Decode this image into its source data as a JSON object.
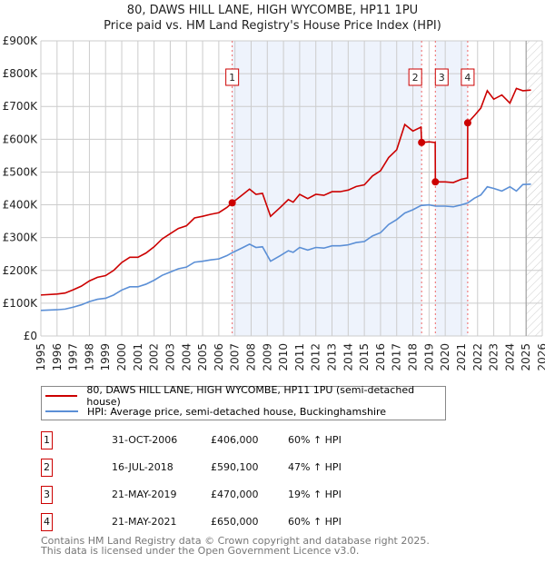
{
  "title_line1": "80, DAWS HILL LANE, HIGH WYCOMBE, HP11 1PU",
  "title_line2": "Price paid vs. HM Land Registry's House Price Index (HPI)",
  "legend": {
    "property": "80, DAWS HILL LANE, HIGH WYCOMBE, HP11 1PU (semi-detached house)",
    "hpi": "HPI: Average price, semi-detached house, Buckinghamshire"
  },
  "colors": {
    "property": "#cc0000",
    "hpi": "#5b8fd6",
    "shade": "#eef3fc",
    "grid": "#cccccc"
  },
  "sales": [
    {
      "num": "1",
      "date": "31-OCT-2006",
      "price": "£406,000",
      "hpi": "60% ↑ HPI",
      "t": 2006.83,
      "value": 406
    },
    {
      "num": "2",
      "date": "16-JUL-2018",
      "price": "£590,100",
      "hpi": "47% ↑ HPI",
      "t": 2018.54,
      "value": 590.1
    },
    {
      "num": "3",
      "date": "21-MAY-2019",
      "price": "£470,000",
      "hpi": "19% ↑ HPI",
      "t": 2019.39,
      "value": 470
    },
    {
      "num": "4",
      "date": "21-MAY-2021",
      "price": "£650,000",
      "hpi": "60% ↑ HPI",
      "t": 2021.39,
      "value": 650
    }
  ],
  "footer": [
    "Contains HM Land Registry data © Crown copyright and database right 2025.",
    "This data is licensed under the Open Government Licence v3.0."
  ],
  "chart_data": {
    "type": "line",
    "title": "80, DAWS HILL LANE, HIGH WYCOMBE, HP11 1PU — Price paid vs. HM Land Registry's House Price Index (HPI)",
    "xlabel": "",
    "ylabel": "",
    "xlim": [
      1995,
      2026
    ],
    "ylim": [
      0,
      900
    ],
    "y_unit": "£K",
    "yticks": [
      "£0",
      "£100K",
      "£200K",
      "£300K",
      "£400K",
      "£500K",
      "£600K",
      "£700K",
      "£800K",
      "£900K"
    ],
    "xticks": [
      "1995",
      "1996",
      "1997",
      "1998",
      "1999",
      "2000",
      "2001",
      "2002",
      "2003",
      "2004",
      "2005",
      "2006",
      "2007",
      "2008",
      "2009",
      "2010",
      "2011",
      "2012",
      "2013",
      "2014",
      "2015",
      "2016",
      "2017",
      "2018",
      "2019",
      "2020",
      "2021",
      "2022",
      "2023",
      "2024",
      "2025",
      "2026"
    ],
    "grid": true,
    "legend_position": "bottom",
    "series": [
      {
        "name": "80, DAWS HILL LANE, HIGH WYCOMBE, HP11 1PU (semi-detached house)",
        "key": "property",
        "points": [
          [
            1995,
            125
          ],
          [
            1996,
            128
          ],
          [
            1996.5,
            131
          ],
          [
            1997,
            141
          ],
          [
            1997.5,
            152
          ],
          [
            1998,
            168
          ],
          [
            1998.5,
            179
          ],
          [
            1999,
            184
          ],
          [
            1999.5,
            200
          ],
          [
            2000,
            224
          ],
          [
            2000.5,
            240
          ],
          [
            2001,
            240
          ],
          [
            2001.5,
            253
          ],
          [
            2002,
            272
          ],
          [
            2002.5,
            296
          ],
          [
            2003,
            312
          ],
          [
            2003.5,
            328
          ],
          [
            2004,
            336
          ],
          [
            2004.5,
            360
          ],
          [
            2005,
            365
          ],
          [
            2005.5,
            371
          ],
          [
            2006,
            376
          ],
          [
            2006.5,
            392
          ],
          [
            2006.83,
            406
          ],
          [
            2007.5,
            432
          ],
          [
            2007.9,
            448
          ],
          [
            2008.3,
            432
          ],
          [
            2008.7,
            435
          ],
          [
            2009.2,
            365
          ],
          [
            2009.8,
            392
          ],
          [
            2010.3,
            416
          ],
          [
            2010.6,
            408
          ],
          [
            2011,
            432
          ],
          [
            2011.5,
            419
          ],
          [
            2012,
            432
          ],
          [
            2012.5,
            429
          ],
          [
            2013,
            440
          ],
          [
            2013.5,
            440
          ],
          [
            2014,
            445
          ],
          [
            2014.5,
            456
          ],
          [
            2015,
            461
          ],
          [
            2015.5,
            488
          ],
          [
            2016,
            504
          ],
          [
            2016.5,
            544
          ],
          [
            2017,
            568
          ],
          [
            2017.5,
            645
          ],
          [
            2018,
            625
          ],
          [
            2018.5,
            637
          ],
          [
            2018.54,
            590
          ],
          [
            2019,
            592
          ],
          [
            2019.38,
            590
          ],
          [
            2019.39,
            470
          ],
          [
            2020,
            470
          ],
          [
            2020.5,
            468
          ],
          [
            2021,
            478
          ],
          [
            2021.38,
            482
          ],
          [
            2021.39,
            650
          ],
          [
            2021.8,
            672
          ],
          [
            2022.2,
            695
          ],
          [
            2022.6,
            748
          ],
          [
            2023,
            722
          ],
          [
            2023.5,
            735
          ],
          [
            2024,
            710
          ],
          [
            2024.4,
            755
          ],
          [
            2024.8,
            748
          ],
          [
            2025.3,
            750
          ]
        ]
      },
      {
        "name": "HPI: Average price, semi-detached house, Buckinghamshire",
        "key": "hpi",
        "points": [
          [
            1995,
            78
          ],
          [
            1996,
            80
          ],
          [
            1996.5,
            82
          ],
          [
            1997,
            88
          ],
          [
            1997.5,
            95
          ],
          [
            1998,
            105
          ],
          [
            1998.5,
            112
          ],
          [
            1999,
            115
          ],
          [
            1999.5,
            125
          ],
          [
            2000,
            140
          ],
          [
            2000.5,
            150
          ],
          [
            2001,
            150
          ],
          [
            2001.5,
            158
          ],
          [
            2002,
            170
          ],
          [
            2002.5,
            185
          ],
          [
            2003,
            195
          ],
          [
            2003.5,
            205
          ],
          [
            2004,
            210
          ],
          [
            2004.5,
            225
          ],
          [
            2005,
            228
          ],
          [
            2005.5,
            232
          ],
          [
            2006,
            235
          ],
          [
            2006.5,
            245
          ],
          [
            2006.83,
            254
          ],
          [
            2007.5,
            270
          ],
          [
            2007.9,
            280
          ],
          [
            2008.3,
            270
          ],
          [
            2008.7,
            272
          ],
          [
            2009.2,
            228
          ],
          [
            2009.8,
            245
          ],
          [
            2010.3,
            260
          ],
          [
            2010.6,
            255
          ],
          [
            2011,
            270
          ],
          [
            2011.5,
            262
          ],
          [
            2012,
            270
          ],
          [
            2012.5,
            268
          ],
          [
            2013,
            275
          ],
          [
            2013.5,
            275
          ],
          [
            2014,
            278
          ],
          [
            2014.5,
            285
          ],
          [
            2015,
            288
          ],
          [
            2015.5,
            305
          ],
          [
            2016,
            315
          ],
          [
            2016.5,
            340
          ],
          [
            2017,
            355
          ],
          [
            2017.5,
            375
          ],
          [
            2018,
            385
          ],
          [
            2018.5,
            398
          ],
          [
            2019,
            400
          ],
          [
            2019.4,
            396
          ],
          [
            2020,
            396
          ],
          [
            2020.5,
            394
          ],
          [
            2021,
            400
          ],
          [
            2021.4,
            406
          ],
          [
            2021.8,
            420
          ],
          [
            2022.2,
            430
          ],
          [
            2022.6,
            455
          ],
          [
            2023,
            450
          ],
          [
            2023.5,
            442
          ],
          [
            2024,
            455
          ],
          [
            2024.4,
            442
          ],
          [
            2024.8,
            462
          ],
          [
            2025.3,
            463
          ]
        ]
      }
    ],
    "shaded_ranges": [
      [
        2006.83,
        2018.54
      ],
      [
        2019.39,
        2021.39
      ]
    ],
    "forecast_from": 2025.0
  }
}
